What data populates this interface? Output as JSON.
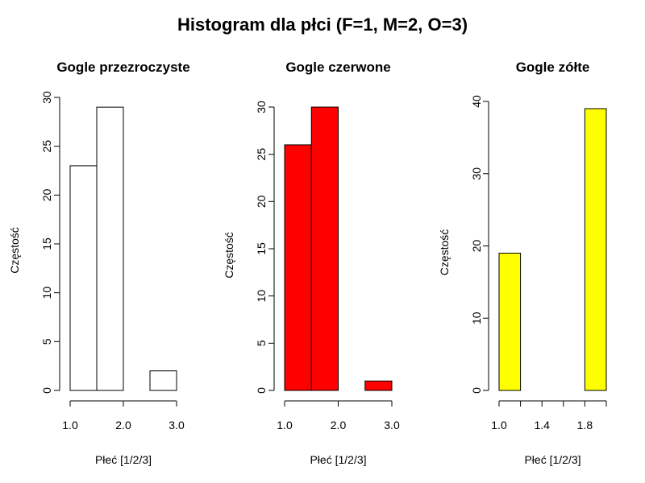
{
  "title": "Histogram dla płci (F=1, M=2, O=3)",
  "chart_data": [
    {
      "type": "bar",
      "title": "Gogle przezroczyste",
      "xlabel": "Płeć [1/2/3]",
      "ylabel": "Częstość",
      "fill": "#ffffff",
      "bins": [
        [
          1.0,
          1.5
        ],
        [
          1.5,
          2.0
        ],
        [
          2.0,
          2.5
        ],
        [
          2.5,
          3.0
        ]
      ],
      "values": [
        23,
        29,
        0,
        2
      ],
      "xlim": [
        1.0,
        3.0
      ],
      "ylim": [
        0,
        30
      ],
      "xticks": [
        1.0,
        2.0,
        3.0
      ],
      "xtick_labels": [
        "1.0",
        "2.0",
        "3.0"
      ],
      "yticks": [
        0,
        5,
        10,
        15,
        20,
        25,
        30
      ],
      "ytick_labels": [
        "0",
        "5",
        "10",
        "15",
        "20",
        "25",
        "30"
      ],
      "grid": false
    },
    {
      "type": "bar",
      "title": "Gogle czerwone",
      "xlabel": "Płeć [1/2/3]",
      "ylabel": "Częstość",
      "fill": "#ff0000",
      "bins": [
        [
          1.0,
          1.5
        ],
        [
          1.5,
          2.0
        ],
        [
          2.0,
          2.5
        ],
        [
          2.5,
          3.0
        ]
      ],
      "values": [
        26,
        30,
        0,
        1
      ],
      "xlim": [
        1.0,
        3.0
      ],
      "ylim": [
        0,
        30
      ],
      "xticks": [
        1.0,
        2.0,
        3.0
      ],
      "xtick_labels": [
        "1.0",
        "2.0",
        "3.0"
      ],
      "yticks": [
        0,
        5,
        10,
        15,
        20,
        25,
        30
      ],
      "ytick_labels": [
        "0",
        "5",
        "10",
        "15",
        "20",
        "25",
        "30"
      ],
      "grid": false
    },
    {
      "type": "bar",
      "title": "Gogle zółte",
      "xlabel": "Płeć [1/2/3]",
      "ylabel": "Częstość",
      "fill": "#ffff00",
      "bins": [
        [
          1.0,
          1.2
        ],
        [
          1.2,
          1.4
        ],
        [
          1.4,
          1.6
        ],
        [
          1.6,
          1.8
        ],
        [
          1.8,
          2.0
        ]
      ],
      "values": [
        19,
        0,
        0,
        0,
        39
      ],
      "xlim": [
        1.0,
        2.0
      ],
      "ylim": [
        0,
        40
      ],
      "xticks": [
        1.0,
        1.2,
        1.4,
        1.6,
        1.8,
        2.0
      ],
      "xtick_labels": [
        "1.0",
        "",
        "1.4",
        "",
        "1.8",
        ""
      ],
      "yticks": [
        0,
        10,
        20,
        30,
        40
      ],
      "ytick_labels": [
        "0",
        "10",
        "20",
        "30",
        "40"
      ],
      "grid": false
    }
  ]
}
